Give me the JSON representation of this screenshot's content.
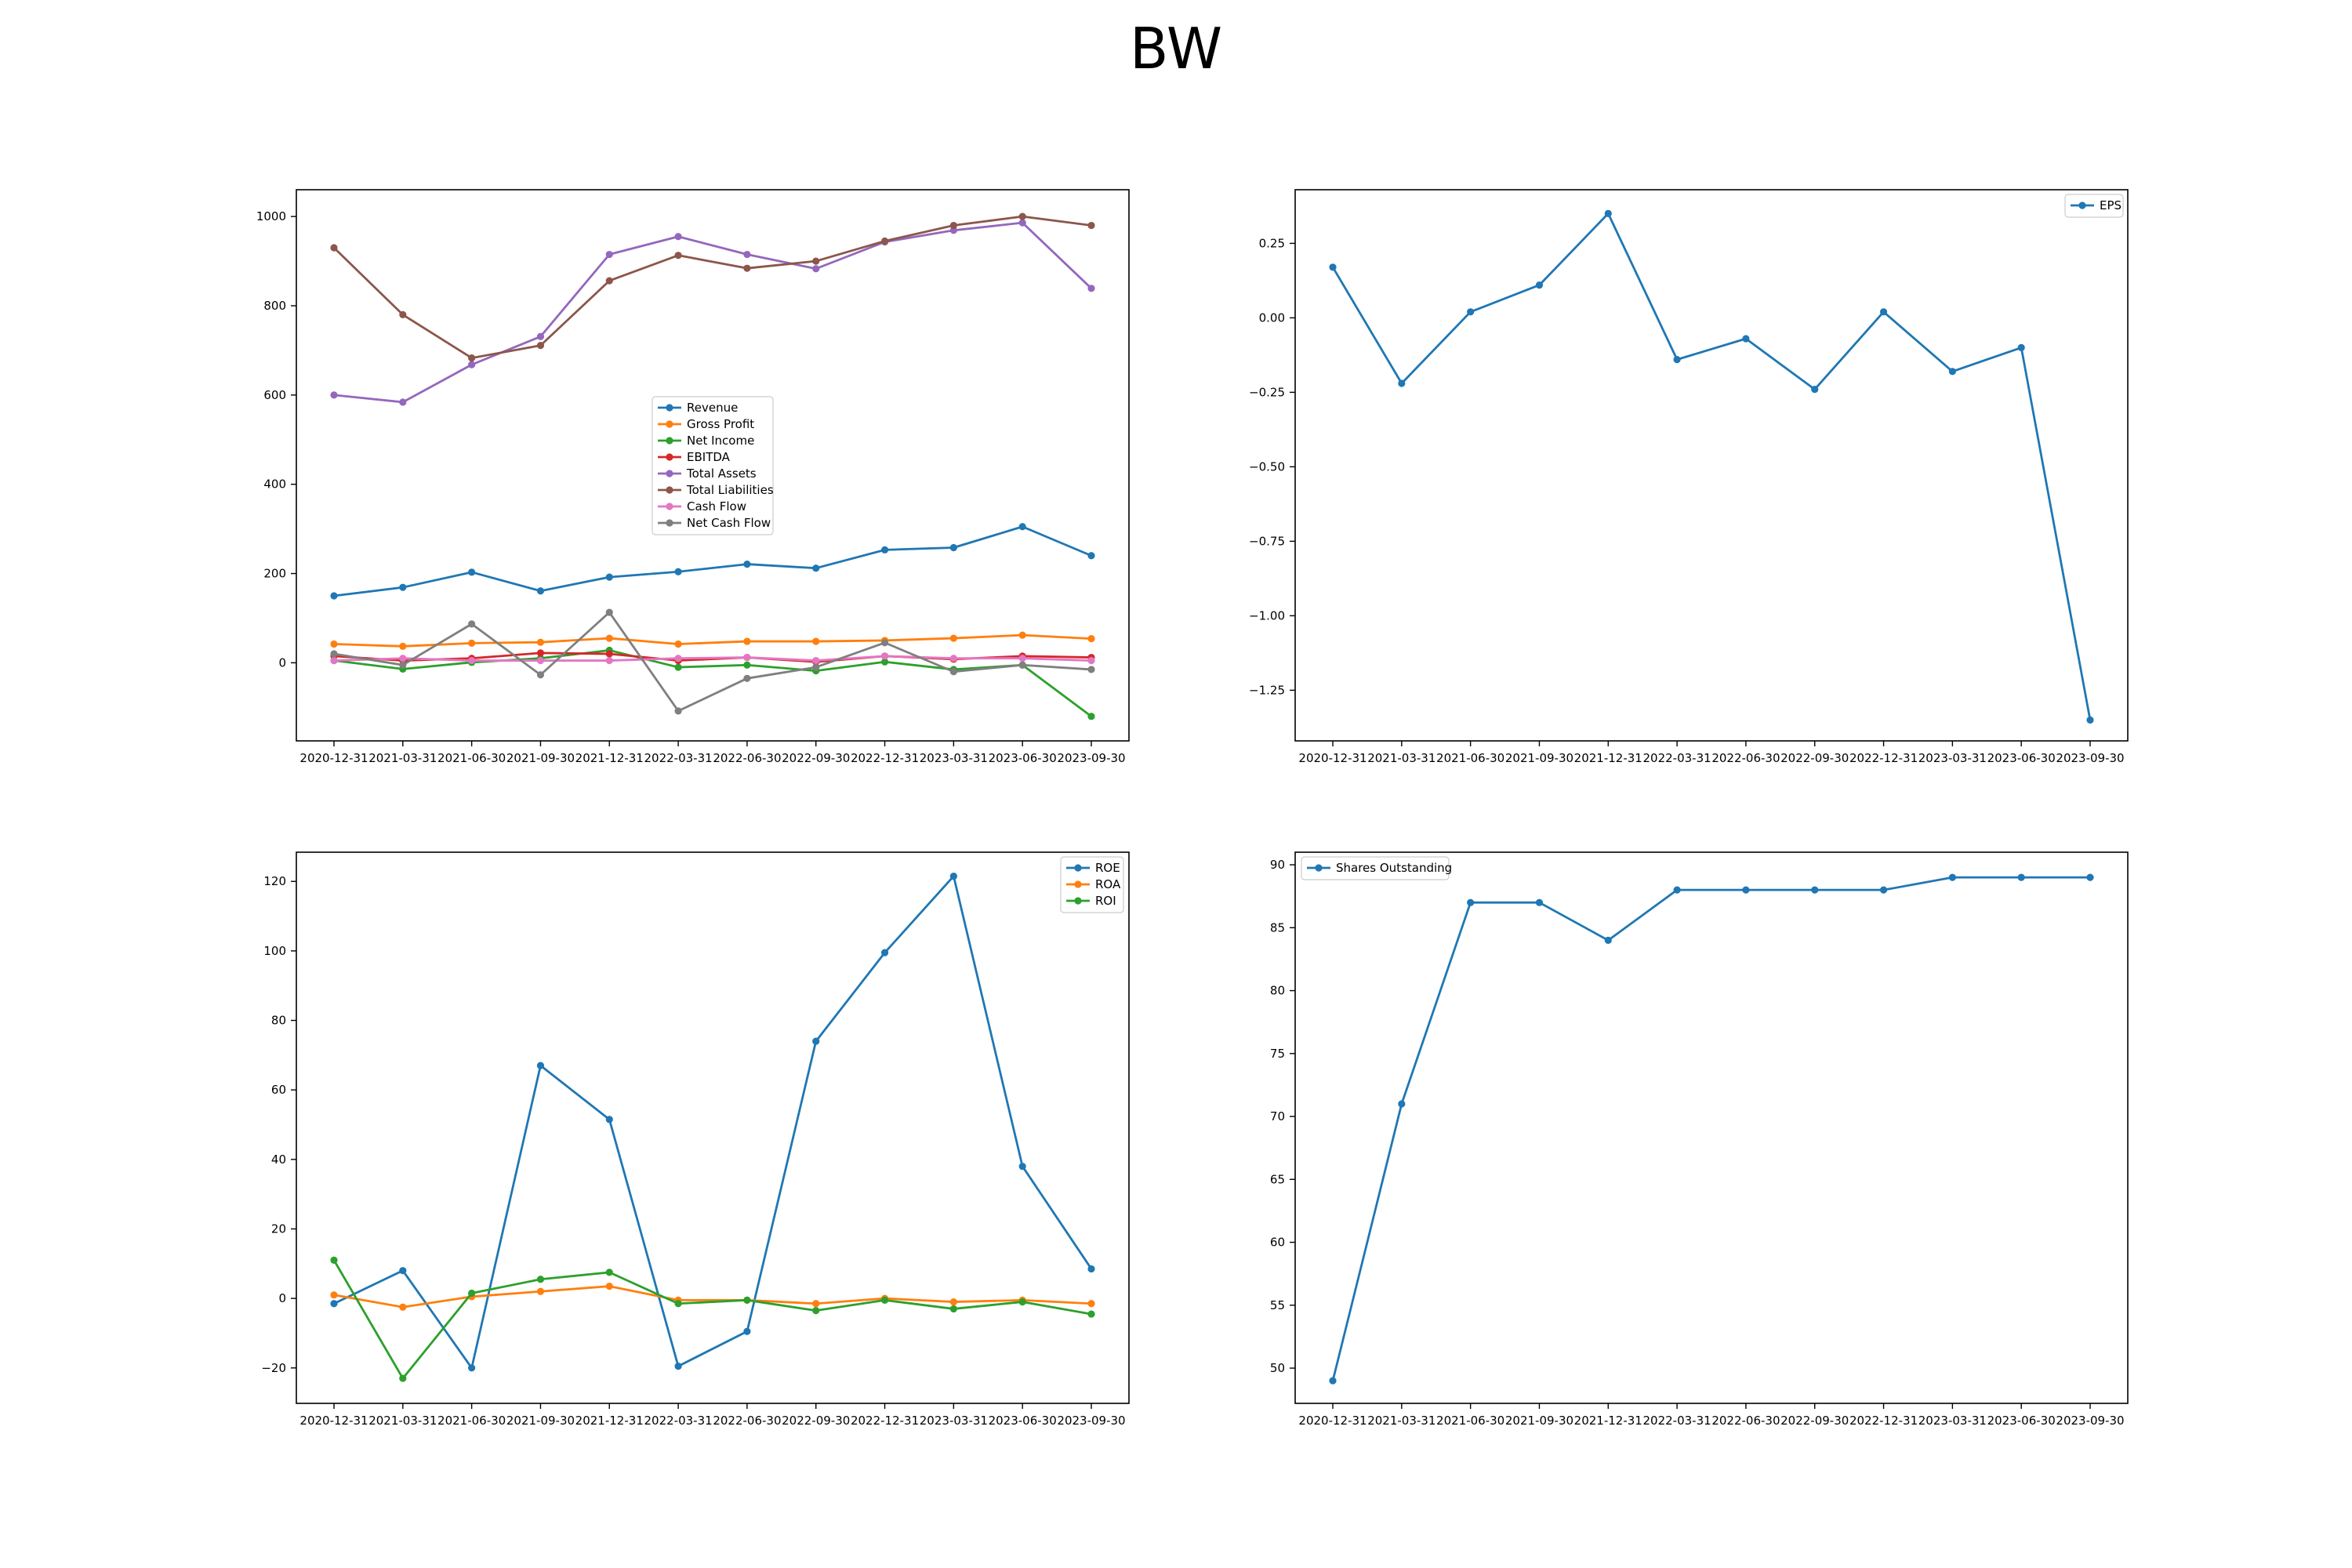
{
  "title": "BW",
  "colors": {
    "blue": "#1f77b4",
    "orange": "#ff7f0e",
    "green": "#2ca02c",
    "red": "#d62728",
    "purple": "#9467bd",
    "brown": "#8c564b",
    "pink": "#e377c2",
    "gray": "#7f7f7f"
  },
  "chart_data": [
    {
      "type": "line",
      "x": [
        "2020-12-31",
        "2021-03-31",
        "2021-06-30",
        "2021-09-30",
        "2021-12-31",
        "2022-03-31",
        "2022-06-30",
        "2022-09-30",
        "2022-12-31",
        "2023-03-31",
        "2023-06-30",
        "2023-09-30"
      ],
      "ylim": [
        -175,
        1060
      ],
      "yticks": [
        0,
        200,
        400,
        600,
        800,
        1000
      ],
      "legend": "center",
      "grid": false,
      "series": [
        {
          "name": "Revenue",
          "color": "#1f77b4",
          "values": [
            150,
            169,
            203,
            161,
            192,
            204,
            221,
            212,
            253,
            258,
            305,
            240
          ]
        },
        {
          "name": "Gross Profit",
          "color": "#ff7f0e",
          "values": [
            42,
            37,
            44,
            46,
            55,
            42,
            48,
            48,
            50,
            55,
            62,
            54
          ]
        },
        {
          "name": "Net Income",
          "color": "#2ca02c",
          "values": [
            5,
            -14,
            1,
            10,
            28,
            -10,
            -5,
            -18,
            2,
            -15,
            -5,
            -120
          ]
        },
        {
          "name": "EBITDA",
          "color": "#d62728",
          "values": [
            15,
            5,
            10,
            22,
            20,
            5,
            12,
            2,
            15,
            8,
            15,
            12
          ]
        },
        {
          "name": "Total Assets",
          "color": "#9467bd",
          "values": [
            600,
            584,
            668,
            731,
            915,
            955,
            915,
            883,
            943,
            969,
            986,
            839
          ]
        },
        {
          "name": "Total Liabilities",
          "color": "#8c564b",
          "values": [
            930,
            780,
            683,
            711,
            856,
            913,
            884,
            900,
            945,
            980,
            1000,
            980
          ]
        },
        {
          "name": "Cash Flow",
          "color": "#e377c2",
          "values": [
            5,
            10,
            5,
            5,
            5,
            10,
            12,
            5,
            15,
            10,
            10,
            5
          ]
        },
        {
          "name": "Net Cash Flow",
          "color": "#7f7f7f",
          "values": [
            20,
            -5,
            87,
            -27,
            113,
            -108,
            -35,
            -10,
            45,
            -20,
            -5,
            -15
          ]
        }
      ]
    },
    {
      "type": "line",
      "x": [
        "2020-12-31",
        "2021-03-31",
        "2021-06-30",
        "2021-09-30",
        "2021-12-31",
        "2022-03-31",
        "2022-06-30",
        "2022-09-30",
        "2022-12-31",
        "2023-03-31",
        "2023-06-30",
        "2023-09-30"
      ],
      "ylim": [
        -1.42,
        0.43
      ],
      "yticks": [
        -1.25,
        -1.0,
        -0.75,
        -0.5,
        -0.25,
        0.0,
        0.25
      ],
      "yticklabels": [
        "−1.25",
        "−1.00",
        "−0.75",
        "−0.50",
        "−0.25",
        "0.00",
        "0.25"
      ],
      "legend": "top-right",
      "grid": false,
      "series": [
        {
          "name": "EPS",
          "color": "#1f77b4",
          "values": [
            0.17,
            -0.22,
            0.02,
            0.11,
            0.35,
            -0.14,
            -0.07,
            -0.24,
            0.02,
            -0.18,
            -0.1,
            -1.35
          ]
        }
      ]
    },
    {
      "type": "line",
      "x": [
        "2020-12-31",
        "2021-03-31",
        "2021-06-30",
        "2021-09-30",
        "2021-12-31",
        "2022-03-31",
        "2022-06-30",
        "2022-09-30",
        "2022-12-31",
        "2023-03-31",
        "2023-06-30",
        "2023-09-30"
      ],
      "ylim": [
        -30.2,
        128.4
      ],
      "yticks": [
        -20,
        0,
        20,
        40,
        60,
        80,
        100,
        120
      ],
      "yticklabels": [
        "−20",
        "0",
        "20",
        "40",
        "60",
        "80",
        "100",
        "120"
      ],
      "legend": "top-right",
      "grid": false,
      "series": [
        {
          "name": "ROE",
          "color": "#1f77b4",
          "values": [
            -1.5,
            8,
            -20,
            67,
            51.5,
            -19.5,
            -9.5,
            74,
            99.5,
            121.5,
            38,
            8.5
          ]
        },
        {
          "name": "ROA",
          "color": "#ff7f0e",
          "values": [
            1,
            -2.5,
            0.5,
            2,
            3.5,
            -0.5,
            -0.5,
            -1.5,
            0,
            -1,
            -0.5,
            -1.5
          ]
        },
        {
          "name": "ROI",
          "color": "#2ca02c",
          "values": [
            11,
            -23,
            1.5,
            5.5,
            7.5,
            -1.5,
            -0.5,
            -3.5,
            -0.5,
            -3,
            -1,
            -4.5
          ]
        }
      ]
    },
    {
      "type": "line",
      "x": [
        "2020-12-31",
        "2021-03-31",
        "2021-06-30",
        "2021-09-30",
        "2021-12-31",
        "2022-03-31",
        "2022-06-30",
        "2022-09-30",
        "2022-12-31",
        "2023-03-31",
        "2023-06-30",
        "2023-09-30"
      ],
      "ylim": [
        47.2,
        91.0
      ],
      "yticks": [
        50,
        55,
        60,
        65,
        70,
        75,
        80,
        85,
        90
      ],
      "legend": "top-left",
      "grid": false,
      "series": [
        {
          "name": "Shares Outstanding",
          "color": "#1f77b4",
          "values": [
            49,
            71,
            87,
            87,
            84,
            88,
            88,
            88,
            88,
            89,
            89,
            89
          ]
        }
      ]
    }
  ]
}
